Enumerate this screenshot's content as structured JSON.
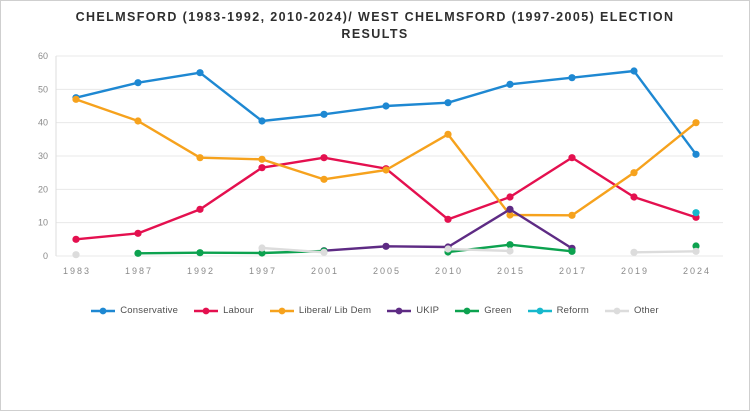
{
  "chart_data": {
    "type": "line",
    "title": "CHELMSFORD (1983-1992, 2010-2024)/ WEST CHELMSFORD (1997-2005) ELECTION RESULTS",
    "title_lines": [
      "CHELMSFORD (1983-1992, 2010-2024)/ WEST CHELMSFORD (1997-2005) ELECTION",
      "RESULTS"
    ],
    "categories": [
      "1983",
      "1987",
      "1992",
      "1997",
      "2001",
      "2005",
      "2010",
      "2015",
      "2017",
      "2019",
      "2024"
    ],
    "series": [
      {
        "name": "Conservative",
        "color": "#1e88d2",
        "values": [
          47.5,
          52,
          55,
          40.5,
          42.5,
          45,
          46,
          51.5,
          53.5,
          55.5,
          30.5
        ]
      },
      {
        "name": "Labour",
        "color": "#e4104f",
        "values": [
          5,
          6.8,
          14,
          26.5,
          29.5,
          26.2,
          11,
          17.7,
          29.5,
          17.7,
          11.6
        ]
      },
      {
        "name": "Liberal/ Lib Dem",
        "color": "#f6a21d",
        "values": [
          47,
          40.5,
          29.5,
          29,
          23,
          25.8,
          36.5,
          12.3,
          12.2,
          25,
          40
        ]
      },
      {
        "name": "UKIP",
        "color": "#5e2b84",
        "values": [
          null,
          null,
          null,
          null,
          1.6,
          2.9,
          2.7,
          14,
          2.3,
          null,
          null
        ]
      },
      {
        "name": "Green",
        "color": "#0ca24f",
        "values": [
          null,
          0.8,
          1,
          0.9,
          1.5,
          null,
          1.2,
          3.4,
          1.4,
          null,
          3
        ]
      },
      {
        "name": "Reform",
        "color": "#16b8cc",
        "values": [
          null,
          null,
          null,
          null,
          null,
          null,
          null,
          null,
          null,
          null,
          13
        ]
      },
      {
        "name": "Other",
        "color": "#dcdcdc",
        "values": [
          0.4,
          null,
          null,
          2.4,
          1.1,
          null,
          2.1,
          1.5,
          null,
          1.1,
          1.4
        ]
      }
    ],
    "ylim": [
      0,
      60
    ],
    "ytick_step": 10,
    "yticks": [
      "0",
      "10",
      "20",
      "30",
      "40",
      "50",
      "60"
    ],
    "grid": true,
    "legend_position": "bottom"
  }
}
